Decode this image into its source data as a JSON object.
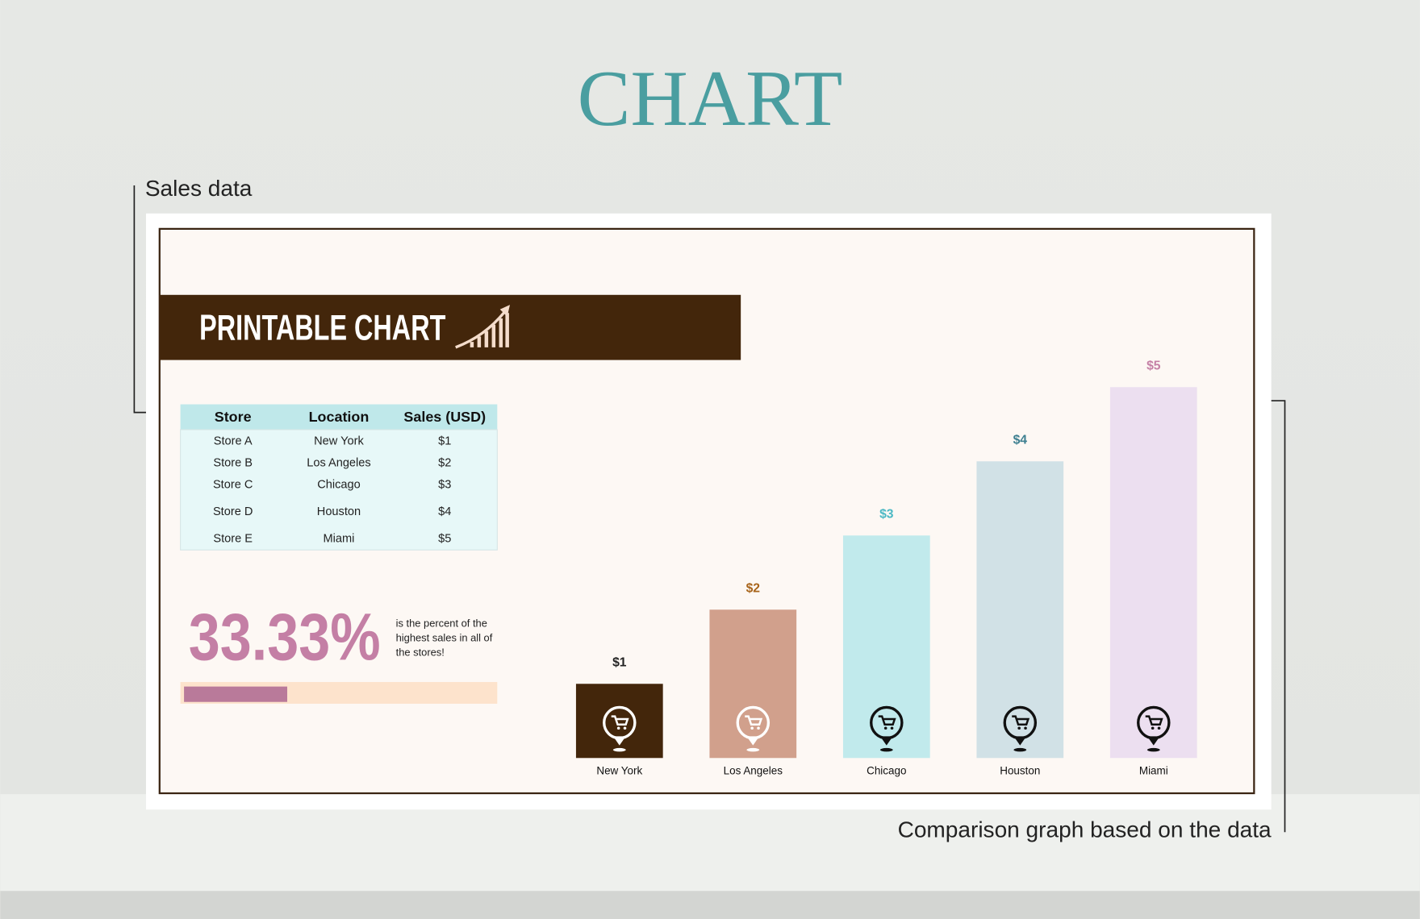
{
  "page": {
    "title": "CHART",
    "annotations": [
      "Sales data",
      "Comparison graph based on the data"
    ]
  },
  "header": {
    "title": "PRINTABLE CHART"
  },
  "table": {
    "columns": [
      "Store",
      "Location",
      "Sales (USD)"
    ],
    "rows": [
      [
        "Store A",
        "New York",
        "$1"
      ],
      [
        "Store B",
        "Los Angeles",
        "$2"
      ],
      [
        "Store C",
        "Chicago",
        "$3"
      ],
      [
        "Store D",
        "Houston",
        "$4"
      ],
      [
        "Store E",
        "Miami",
        "$5"
      ]
    ]
  },
  "stat": {
    "value": 33.33,
    "label": "33.33%",
    "lines": [
      "is the percent of the",
      "highest sales in all of",
      "the stores!"
    ]
  },
  "chart_data": {
    "type": "bar",
    "categories": [
      "New York",
      "Los Angeles",
      "Chicago",
      "Houston",
      "Miami"
    ],
    "values": [
      1,
      2,
      3,
      4,
      5
    ],
    "value_labels": [
      "$1",
      "$2",
      "$3",
      "$4",
      "$5"
    ],
    "colors": [
      "#43260b",
      "#d1a08c",
      "#c1eaec",
      "#d1e1e6",
      "#ecdff0"
    ],
    "label_colors": [
      "#222222",
      "#a8641a",
      "#4bb8c4",
      "#3d7f90",
      "#c47fa5"
    ]
  }
}
